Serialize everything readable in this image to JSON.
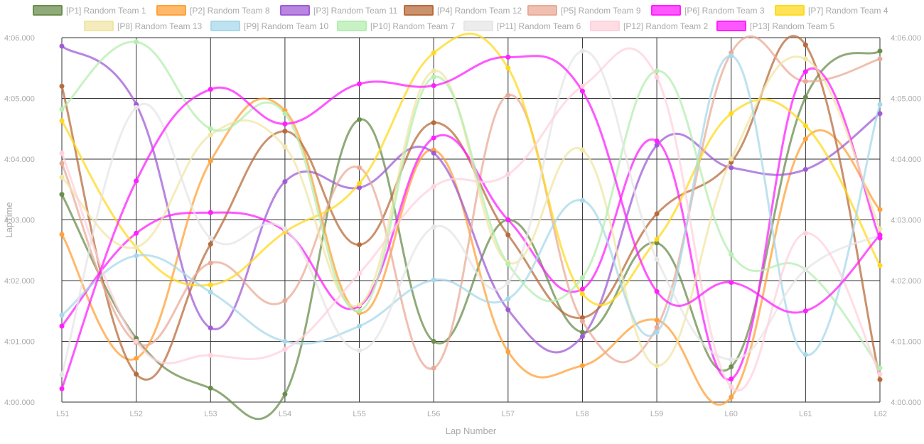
{
  "chart_data": {
    "type": "line",
    "title": "",
    "xlabel": "Lap Number",
    "ylabel": "LapTime",
    "categories": [
      "L51",
      "L52",
      "L53",
      "L54",
      "L55",
      "L56",
      "L57",
      "L58",
      "L59",
      "L60",
      "L61",
      "L62"
    ],
    "ylim": [
      240,
      246
    ],
    "yticks": [
      240,
      241,
      242,
      243,
      244,
      245,
      246
    ],
    "ytick_labels": [
      "4:00.000",
      "4:01.000",
      "4:02.000",
      "4:03.000",
      "4:04.000",
      "4:05.000",
      "4:06.000"
    ],
    "grid": true,
    "legend": "top",
    "series": [
      {
        "name": "[P1] Random Team 1",
        "color": "#6b8e4e",
        "values": [
          243.42,
          241.05,
          240.23,
          240.13,
          244.65,
          241.0,
          243.0,
          241.15,
          242.62,
          240.58,
          245.02,
          245.78
        ]
      },
      {
        "name": "[P2] Random Team 8",
        "color": "#ffa23a",
        "values": [
          242.76,
          240.72,
          243.97,
          244.8,
          241.47,
          244.15,
          240.83,
          240.6,
          241.35,
          240.08,
          244.33,
          243.17
        ]
      },
      {
        "name": "[P3] Random Team 11",
        "color": "#a05cd6",
        "values": [
          245.86,
          244.9,
          241.22,
          243.63,
          243.53,
          244.1,
          241.52,
          241.08,
          244.23,
          243.86,
          243.83,
          244.75
        ]
      },
      {
        "name": "[P4] Random Team 12",
        "color": "#b86c3c",
        "values": [
          245.2,
          240.46,
          242.6,
          244.46,
          242.59,
          244.6,
          242.75,
          241.39,
          243.1,
          243.95,
          245.88,
          240.37
        ]
      },
      {
        "name": "[P5] Random Team 9",
        "color": "#e9ab97",
        "values": [
          243.93,
          240.98,
          242.29,
          241.67,
          243.86,
          240.56,
          245.05,
          241.33,
          241.23,
          245.75,
          245.28,
          245.65
        ]
      },
      {
        "name": "[P6] Random Team 3",
        "color": "#ff1fff",
        "values": [
          241.25,
          242.78,
          243.12,
          242.82,
          241.58,
          244.35,
          243.0,
          241.86,
          244.3,
          240.38,
          245.44,
          242.7
        ]
      },
      {
        "name": "[P7] Random Team 4",
        "color": "#ffd91f",
        "values": [
          244.63,
          242.55,
          241.93,
          242.8,
          243.6,
          245.75,
          245.5,
          241.78,
          242.68,
          244.75,
          244.55,
          242.25
        ]
      },
      {
        "name": "[P8] Random Team 13",
        "color": "#f0e6a6",
        "values": [
          243.7,
          242.55,
          244.4,
          244.2,
          241.6,
          245.45,
          242.3,
          244.15,
          240.6,
          244.0,
          245.65,
          242.85
        ]
      },
      {
        "name": "[P9] Random Team 10",
        "color": "#a8d8ea",
        "values": [
          241.43,
          242.41,
          241.81,
          241.0,
          241.25,
          242.01,
          241.7,
          243.32,
          241.15,
          245.7,
          240.78,
          244.9
        ]
      },
      {
        "name": "[P10] Random Team 7",
        "color": "#b5eeb0",
        "values": [
          244.82,
          245.93,
          244.5,
          244.75,
          241.5,
          245.35,
          242.27,
          242.05,
          245.45,
          242.43,
          242.18,
          240.56
        ]
      },
      {
        "name": "[P11] Random Team 6",
        "color": "#e6e6e6",
        "values": [
          240.45,
          244.85,
          242.7,
          242.85,
          240.85,
          242.88,
          241.97,
          245.78,
          242.35,
          240.7,
          242.18,
          242.75
        ]
      },
      {
        "name": "[P12] Random Team 2",
        "color": "#ffd1dc",
        "values": [
          244.1,
          241.0,
          240.77,
          240.87,
          242.12,
          243.55,
          243.75,
          245.2,
          245.35,
          240.25,
          242.78,
          240.46
        ]
      },
      {
        "name": "[P13] Random Team 5",
        "color": "#ff1fff",
        "values": [
          240.22,
          243.64,
          245.15,
          244.58,
          245.24,
          245.21,
          245.68,
          245.12,
          241.82,
          241.97,
          241.5,
          242.75
        ]
      }
    ]
  }
}
